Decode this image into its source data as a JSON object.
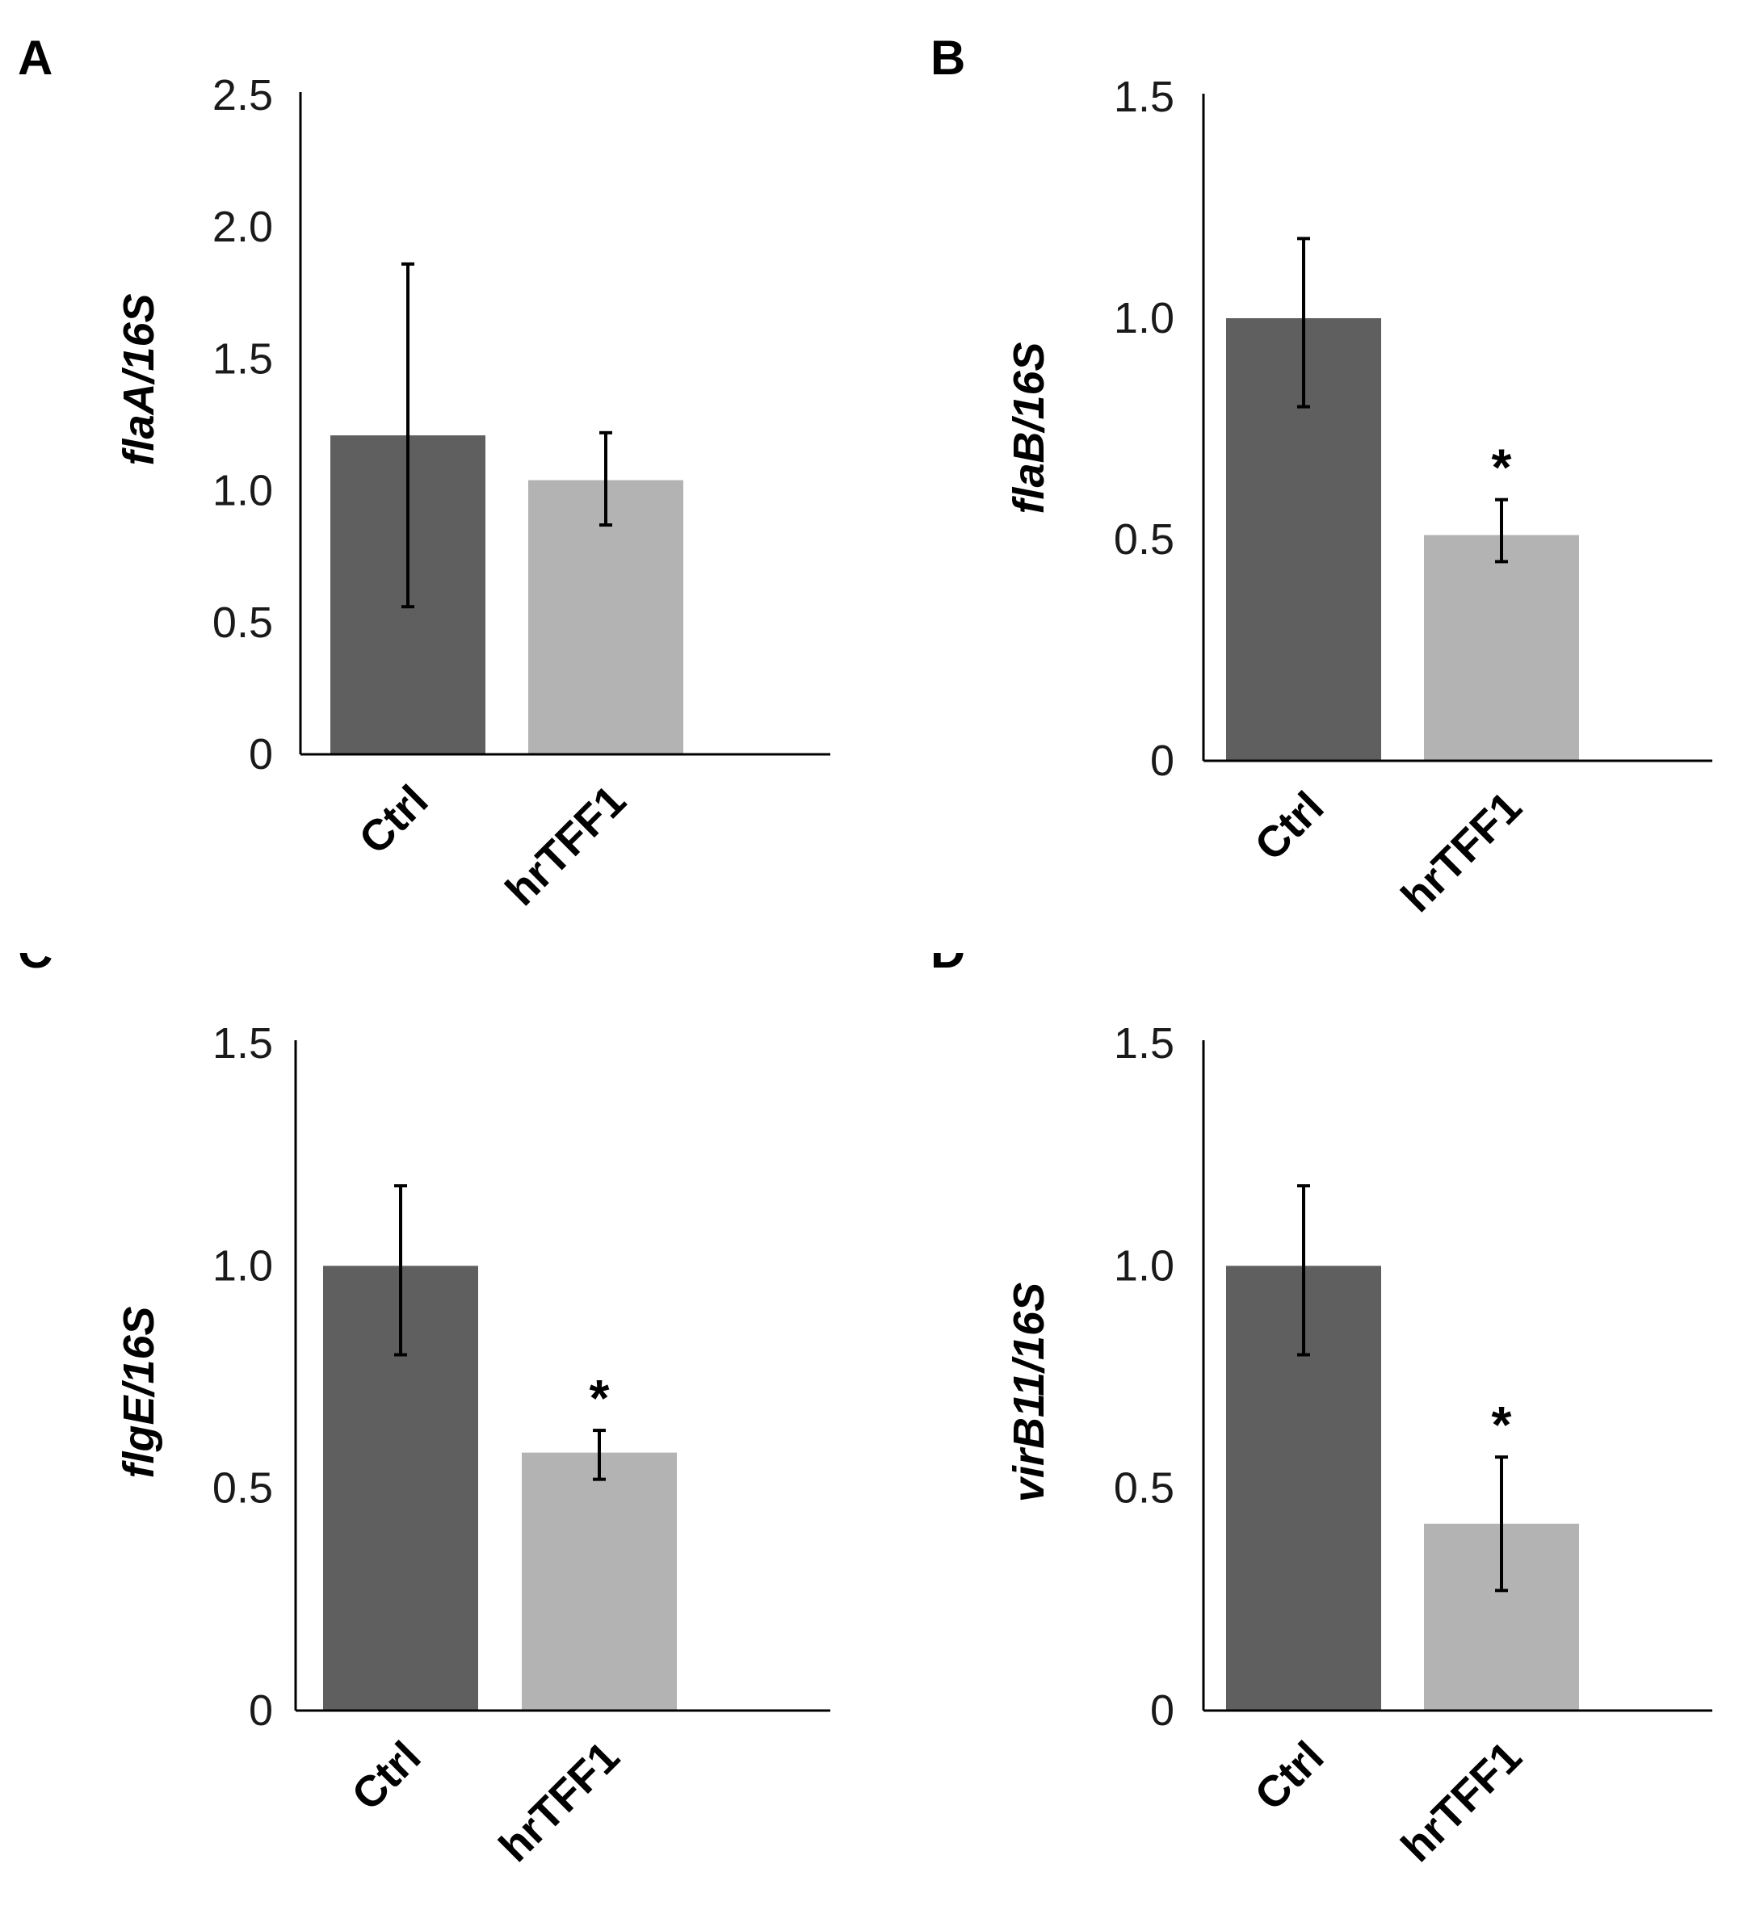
{
  "chart_data": [
    {
      "type": "bar",
      "panel": "A",
      "ylabel": "flaA/16S",
      "categories": [
        "Ctrl",
        "hrTFF1"
      ],
      "values": [
        1.21,
        1.04
      ],
      "errors": [
        [
          0.56,
          1.86
        ],
        [
          0.87,
          1.22
        ]
      ],
      "significance": [
        "",
        ""
      ],
      "ylim": [
        0,
        2.5
      ],
      "yticks": [
        0,
        0.5,
        1.0,
        1.5,
        2.0,
        2.5
      ],
      "ytick_labels": [
        "0",
        "0.5",
        "1.0",
        "1.5",
        "2.0",
        "2.5"
      ],
      "colors": [
        "#5f5f5f",
        "#b3b3b3"
      ]
    },
    {
      "type": "bar",
      "panel": "B",
      "ylabel": "flaB/16S",
      "categories": [
        "Ctrl",
        "hrTFF1"
      ],
      "values": [
        1.0,
        0.51
      ],
      "errors": [
        [
          0.8,
          1.18
        ],
        [
          0.45,
          0.59
        ]
      ],
      "significance": [
        "",
        "*"
      ],
      "ylim": [
        0,
        1.5
      ],
      "yticks": [
        0,
        0.5,
        1.0,
        1.5
      ],
      "ytick_labels": [
        "0",
        "0.5",
        "1.0",
        "1.5"
      ],
      "colors": [
        "#5f5f5f",
        "#b3b3b3"
      ]
    },
    {
      "type": "bar",
      "panel": "C",
      "ylabel": "flgE/16S",
      "categories": [
        "Ctrl",
        "hrTFF1"
      ],
      "values": [
        1.0,
        0.58
      ],
      "errors": [
        [
          0.8,
          1.18
        ],
        [
          0.52,
          0.63
        ]
      ],
      "significance": [
        "",
        "*"
      ],
      "ylim": [
        0,
        1.5
      ],
      "yticks": [
        0,
        0.5,
        1.0,
        1.5
      ],
      "ytick_labels": [
        "0",
        "0.5",
        "1.0",
        "1.5"
      ],
      "colors": [
        "#5f5f5f",
        "#b3b3b3"
      ]
    },
    {
      "type": "bar",
      "panel": "D",
      "ylabel": "virB11/16S",
      "categories": [
        "Ctrl",
        "hrTFF1"
      ],
      "values": [
        1.0,
        0.42
      ],
      "errors": [
        [
          0.8,
          1.18
        ],
        [
          0.27,
          0.57
        ]
      ],
      "significance": [
        "",
        "*"
      ],
      "ylim": [
        0,
        1.5
      ],
      "yticks": [
        0,
        0.5,
        1.0,
        1.5
      ],
      "ytick_labels": [
        "0",
        "0.5",
        "1.0",
        "1.5"
      ],
      "colors": [
        "#5f5f5f",
        "#b3b3b3"
      ]
    }
  ]
}
